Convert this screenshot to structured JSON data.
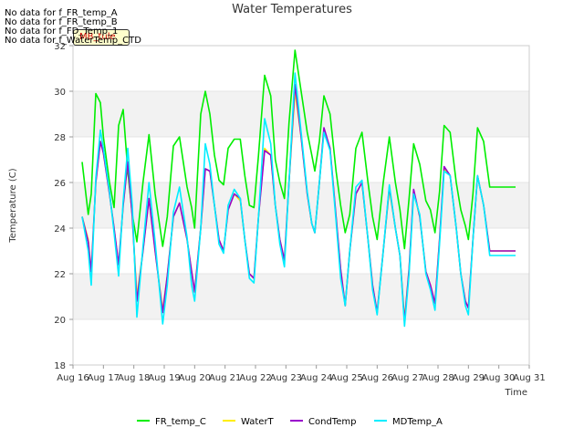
{
  "no_data_messages": [
    "No data for f_FR_temp_A",
    "No data for f_FR_temp_B",
    "No data for f_FD_Temp_1",
    "No data for f_WaterTemp_CTD"
  ],
  "tooltip_label": "MB_tule",
  "chart_data": {
    "type": "line",
    "title": "Water Temperatures",
    "xlabel": "Time",
    "ylabel": "Temperature (C)",
    "xlim": [
      16,
      31
    ],
    "ylim": [
      18,
      32
    ],
    "x_ticks": [
      16,
      17,
      18,
      19,
      20,
      21,
      22,
      23,
      24,
      25,
      26,
      27,
      28,
      29,
      30,
      31
    ],
    "x_tick_labels": [
      "Aug 16",
      "Aug 17",
      "Aug 18",
      "Aug 19",
      "Aug 20",
      "Aug 21",
      "Aug 22",
      "Aug 23",
      "Aug 24",
      "Aug 25",
      "Aug 26",
      "Aug 27",
      "Aug 28",
      "Aug 29",
      "Aug 30",
      "Aug 31"
    ],
    "y_ticks": [
      18,
      20,
      22,
      24,
      26,
      28,
      30,
      32
    ],
    "grid": true,
    "legend_position": "bottom-center",
    "series": [
      {
        "name": "FR_temp_C",
        "color": "#00ee00",
        "x": [
          16.3,
          16.5,
          16.6,
          16.75,
          16.9,
          17.0,
          17.2,
          17.35,
          17.5,
          17.65,
          17.8,
          17.95,
          18.1,
          18.3,
          18.5,
          18.7,
          18.95,
          19.1,
          19.3,
          19.5,
          19.75,
          19.9,
          20.0,
          20.2,
          20.35,
          20.5,
          20.65,
          20.8,
          20.95,
          21.1,
          21.3,
          21.5,
          21.65,
          21.8,
          21.95,
          22.1,
          22.3,
          22.5,
          22.65,
          22.8,
          22.95,
          23.1,
          23.3,
          23.5,
          23.7,
          23.85,
          23.95,
          24.1,
          24.25,
          24.45,
          24.65,
          24.8,
          24.95,
          25.1,
          25.3,
          25.5,
          25.7,
          25.85,
          26.0,
          26.2,
          26.4,
          26.6,
          26.75,
          26.9,
          27.05,
          27.2,
          27.4,
          27.6,
          27.75,
          27.9,
          28.05,
          28.2,
          28.4,
          28.6,
          28.75,
          28.9,
          29.0,
          29.15,
          29.3,
          29.5,
          29.7,
          29.85,
          30.0,
          30.15,
          30.3,
          30.45,
          30.55
        ],
        "values": [
          26.9,
          24.6,
          25.5,
          29.9,
          29.5,
          28.0,
          26.0,
          24.9,
          28.5,
          29.2,
          26.5,
          24.6,
          23.4,
          26.0,
          28.1,
          25.5,
          23.2,
          24.5,
          27.6,
          28.0,
          25.8,
          24.9,
          24.0,
          29.0,
          30.0,
          29.0,
          27.2,
          26.1,
          25.9,
          27.5,
          27.9,
          27.9,
          26.3,
          25.0,
          24.9,
          27.2,
          30.7,
          29.8,
          27.0,
          26.0,
          25.3,
          28.6,
          31.8,
          30.0,
          28.2,
          27.2,
          26.5,
          27.8,
          29.8,
          29.0,
          26.5,
          25.0,
          23.8,
          24.6,
          27.5,
          28.2,
          26.0,
          24.5,
          23.5,
          26.0,
          28.0,
          26.0,
          24.8,
          23.1,
          25.3,
          27.7,
          26.8,
          25.2,
          24.8,
          23.8,
          25.6,
          28.5,
          28.2,
          26.0,
          24.8,
          24.1,
          23.5,
          25.5,
          28.4,
          27.8,
          25.8,
          25.8,
          25.8,
          25.8,
          25.8,
          25.8,
          25.8
        ]
      },
      {
        "name": "WaterT",
        "color": "#ffee00",
        "x": [
          16.3,
          16.5,
          16.6,
          16.75,
          16.9,
          17.0,
          17.2,
          17.35,
          17.5,
          17.65,
          17.8,
          17.95,
          18.1,
          18.3,
          18.5,
          18.7,
          18.95,
          19.1,
          19.3,
          19.5,
          19.75,
          19.9,
          20.0,
          20.2,
          20.35,
          20.5,
          20.65,
          20.8,
          20.95,
          21.1,
          21.3,
          21.5,
          21.65,
          21.8,
          21.95,
          22.1,
          22.3,
          22.5,
          22.65,
          22.8,
          22.95,
          23.1,
          23.3,
          23.5,
          23.7,
          23.85,
          23.95,
          24.1,
          24.25,
          24.45,
          24.65,
          24.8,
          24.95,
          25.1,
          25.3,
          25.5,
          25.7,
          25.85,
          26.0,
          26.2,
          26.4,
          26.6,
          26.75,
          26.9,
          27.05,
          27.2,
          27.4,
          27.6,
          27.75,
          27.9,
          28.05,
          28.2,
          28.4,
          28.6,
          28.75,
          28.9,
          29.0,
          29.15,
          29.3,
          29.5,
          29.7,
          29.85,
          30.0,
          30.15,
          30.3,
          30.45,
          30.55
        ],
        "values": [
          24.5,
          23.5,
          22.1,
          26.0,
          27.8,
          27.3,
          25.5,
          24.0,
          22.4,
          25.0,
          26.9,
          24.5,
          21.0,
          23.0,
          25.3,
          23.0,
          20.4,
          21.9,
          24.5,
          25.1,
          23.5,
          22.1,
          21.2,
          24.0,
          26.6,
          26.5,
          25.0,
          23.5,
          23.0,
          24.8,
          25.5,
          25.2,
          23.5,
          22.0,
          21.8,
          24.5,
          27.5,
          27.2,
          25.0,
          23.5,
          22.6,
          26.0,
          30.0,
          28.0,
          25.5,
          24.2,
          23.8,
          26.0,
          28.3,
          27.5,
          24.5,
          22.2,
          20.6,
          23.0,
          25.5,
          26.0,
          23.5,
          21.5,
          20.3,
          23.0,
          25.7,
          24.0,
          22.8,
          20.0,
          22.2,
          25.6,
          24.5,
          22.1,
          21.5,
          20.7,
          23.5,
          26.6,
          26.3,
          24.0,
          22.0,
          20.8,
          20.5,
          23.5,
          26.3,
          25.0,
          23.0,
          23.0,
          23.0,
          23.0,
          23.0,
          23.0,
          23.0
        ]
      },
      {
        "name": "CondTemp",
        "color": "#9900cc",
        "x": [
          16.3,
          16.5,
          16.6,
          16.75,
          16.9,
          17.0,
          17.2,
          17.35,
          17.5,
          17.65,
          17.8,
          17.95,
          18.1,
          18.3,
          18.5,
          18.7,
          18.95,
          19.1,
          19.3,
          19.5,
          19.75,
          19.9,
          20.0,
          20.2,
          20.35,
          20.5,
          20.65,
          20.8,
          20.95,
          21.1,
          21.3,
          21.5,
          21.65,
          21.8,
          21.95,
          22.1,
          22.3,
          22.5,
          22.65,
          22.8,
          22.95,
          23.1,
          23.3,
          23.5,
          23.7,
          23.85,
          23.95,
          24.1,
          24.25,
          24.45,
          24.65,
          24.8,
          24.95,
          25.1,
          25.3,
          25.5,
          25.7,
          25.85,
          26.0,
          26.2,
          26.4,
          26.6,
          26.75,
          26.9,
          27.05,
          27.2,
          27.4,
          27.6,
          27.75,
          27.9,
          28.05,
          28.2,
          28.4,
          28.6,
          28.75,
          28.9,
          29.0,
          29.15,
          29.3,
          29.5,
          29.7,
          29.85,
          30.0,
          30.15,
          30.3,
          30.45,
          30.55
        ],
        "values": [
          24.5,
          23.4,
          22.1,
          26.0,
          27.8,
          27.3,
          25.5,
          24.0,
          22.4,
          25.0,
          26.9,
          24.5,
          20.8,
          23.0,
          25.3,
          23.0,
          20.3,
          21.9,
          24.5,
          25.1,
          23.5,
          22.1,
          21.2,
          24.0,
          26.6,
          26.5,
          25.0,
          23.5,
          23.0,
          24.8,
          25.5,
          25.3,
          23.5,
          22.0,
          21.8,
          24.5,
          27.4,
          27.2,
          25.0,
          23.5,
          22.6,
          26.0,
          30.3,
          28.0,
          25.5,
          24.2,
          23.8,
          26.0,
          28.4,
          27.5,
          24.5,
          22.2,
          20.6,
          23.0,
          25.5,
          26.0,
          23.5,
          21.5,
          20.3,
          23.0,
          25.8,
          24.0,
          22.8,
          19.9,
          22.2,
          25.7,
          24.5,
          22.1,
          21.5,
          20.7,
          23.5,
          26.7,
          26.3,
          24.0,
          22.0,
          20.8,
          20.5,
          23.5,
          26.3,
          25.0,
          23.0,
          23.0,
          23.0,
          23.0,
          23.0,
          23.0,
          23.0
        ]
      },
      {
        "name": "MDTemp_A",
        "color": "#00eeff",
        "x": [
          16.3,
          16.5,
          16.6,
          16.75,
          16.9,
          17.0,
          17.2,
          17.35,
          17.5,
          17.65,
          17.8,
          17.95,
          18.1,
          18.3,
          18.5,
          18.7,
          18.95,
          19.1,
          19.3,
          19.5,
          19.75,
          19.9,
          20.0,
          20.2,
          20.35,
          20.5,
          20.65,
          20.8,
          20.95,
          21.1,
          21.3,
          21.5,
          21.65,
          21.8,
          21.95,
          22.1,
          22.3,
          22.5,
          22.65,
          22.8,
          22.95,
          23.1,
          23.3,
          23.5,
          23.7,
          23.85,
          23.95,
          24.1,
          24.25,
          24.45,
          24.65,
          24.8,
          24.95,
          25.1,
          25.3,
          25.5,
          25.7,
          25.85,
          26.0,
          26.2,
          26.4,
          26.6,
          26.75,
          26.9,
          27.05,
          27.2,
          27.4,
          27.6,
          27.75,
          27.9,
          28.05,
          28.2,
          28.4,
          28.6,
          28.75,
          28.9,
          29.0,
          29.15,
          29.3,
          29.5,
          29.7,
          29.85,
          30.0,
          30.15,
          30.3,
          30.45,
          30.55
        ],
        "values": [
          24.5,
          23.0,
          21.5,
          26.2,
          28.3,
          27.5,
          25.6,
          23.8,
          21.9,
          25.2,
          27.5,
          25.0,
          20.1,
          23.2,
          26.0,
          23.4,
          19.8,
          21.5,
          24.7,
          25.8,
          23.6,
          21.5,
          20.8,
          24.0,
          27.7,
          26.8,
          25.0,
          23.3,
          22.9,
          25.0,
          25.7,
          25.3,
          23.5,
          21.8,
          21.6,
          24.5,
          28.8,
          27.7,
          25.0,
          23.3,
          22.3,
          26.0,
          30.8,
          28.2,
          25.6,
          24.2,
          23.8,
          26.0,
          28.2,
          27.4,
          24.3,
          21.8,
          20.6,
          23.0,
          25.8,
          26.1,
          23.5,
          21.3,
          20.2,
          23.0,
          25.9,
          24.0,
          22.8,
          19.7,
          22.0,
          25.5,
          24.6,
          22.0,
          21.3,
          20.4,
          23.3,
          26.5,
          26.3,
          24.0,
          22.0,
          20.6,
          20.2,
          23.5,
          26.3,
          25.0,
          22.8,
          22.8,
          22.8,
          22.8,
          22.8,
          22.8,
          22.8
        ]
      }
    ]
  }
}
